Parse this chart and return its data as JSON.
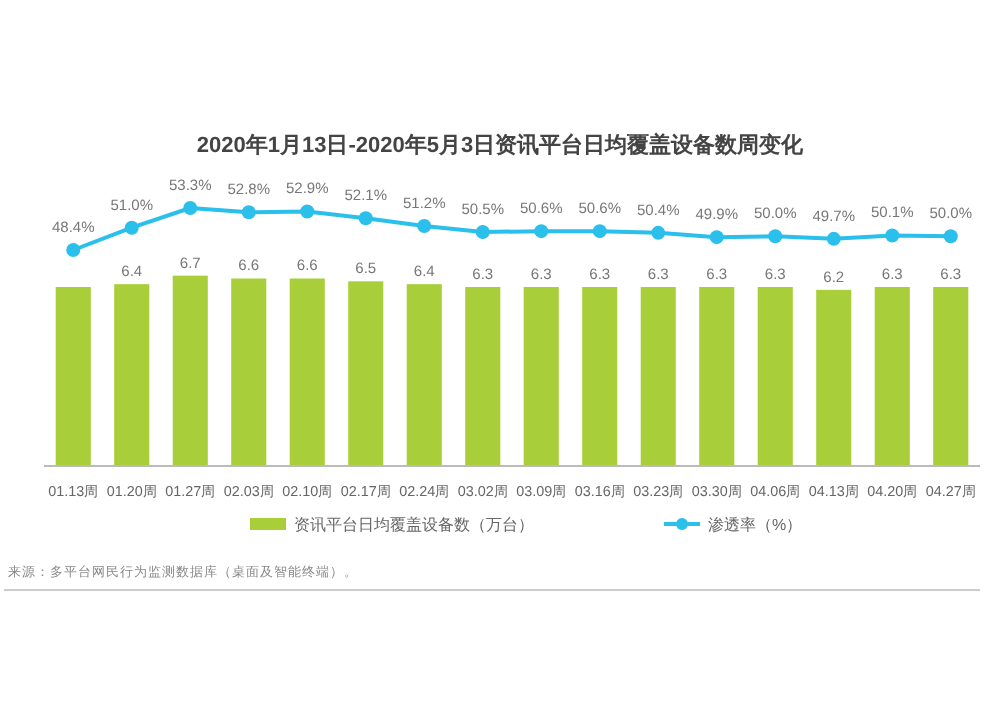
{
  "chart_data": [
    {
      "type": "line",
      "title": "2020年1月13日-2020年5月3日资讯平台日均覆盖设备数周变化",
      "categories": [
        null,
        null,
        null,
        null,
        null,
        null,
        null,
        null,
        null,
        null,
        null,
        null,
        null,
        null,
        null,
        null
      ],
      "series": [
        {
          "name": "渗透率（%）",
          "color": "#2bbfeb",
          "marker": "circle",
          "values": [
            48.4,
            51.0,
            53.3,
            52.8,
            52.9,
            52.1,
            51.2,
            50.5,
            50.6,
            50.6,
            50.4,
            49.9,
            50.0,
            49.7,
            50.1,
            50.0
          ],
          "value_labels": [
            "48.4%",
            "51.0%",
            "53.3%",
            "52.8%",
            "52.9%",
            "52.1%",
            "51.2%",
            "50.5%",
            "50.6%",
            "50.6%",
            "50.4%",
            "49.9%",
            "50.0%",
            "49.7%",
            "50.1%",
            "50.0%"
          ]
        }
      ],
      "legend": "bottom"
    },
    {
      "type": "bar",
      "categories": [
        "01.13周",
        "01.20周",
        "01.27周",
        "02.03周",
        "02.10周",
        "02.17周",
        "02.24周",
        "03.02周",
        "03.09周",
        "03.16周",
        "03.23周",
        "03.30周",
        "04.06周",
        "04.13周",
        "04.20周",
        "04.27周"
      ],
      "series": [
        {
          "name": "资讯平台日均覆盖设备数（万台）",
          "color": "#a8cf3a",
          "values": [
            6.3,
            6.4,
            6.7,
            6.6,
            6.6,
            6.5,
            6.4,
            6.3,
            6.3,
            6.3,
            6.3,
            6.3,
            6.3,
            6.2,
            6.3,
            6.3
          ],
          "value_labels": [
            null,
            "6.4",
            "6.7",
            "6.6",
            "6.6",
            "6.5",
            "6.4",
            "6.3",
            "6.3",
            "6.3",
            "6.3",
            "6.3",
            "6.3",
            "6.2",
            "6.3",
            "6.3"
          ]
        }
      ],
      "legend": "bottom",
      "annotations": [
        "来源：多平台网民行为监测数据库（桌面及智能终端）。"
      ]
    }
  ]
}
